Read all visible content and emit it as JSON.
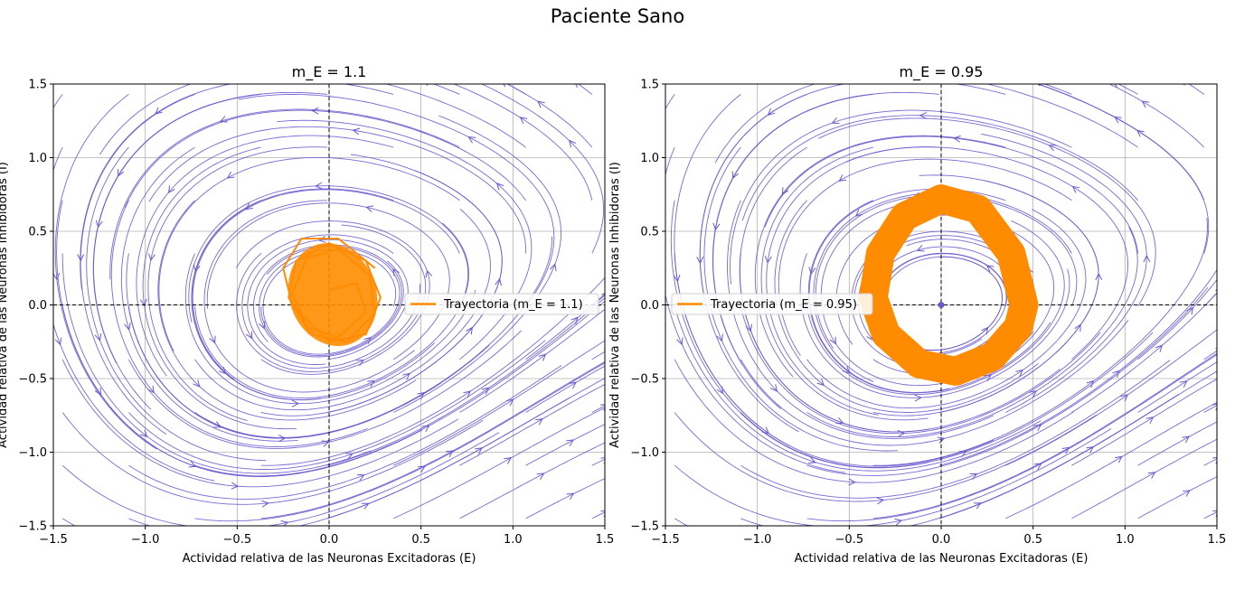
{
  "figure": {
    "suptitle": "Paciente Sano"
  },
  "colors": {
    "streamlines": "#6a5acd",
    "trajectory": "#ff8c00",
    "grid": "#b0b0b0",
    "nullclines": "#000000"
  },
  "chart_data": [
    {
      "type": "line",
      "title": "m_E = 1.1",
      "xlabel": "Actividad relativa de las Neuronas Excitadoras (E)",
      "ylabel": "Actividad relativa de las Neuronas Inhibidoras (I)",
      "xlim": [
        -1.5,
        1.5
      ],
      "ylim": [
        -1.5,
        1.5
      ],
      "xticks": [
        "−1.5",
        "−1.0",
        "−0.5",
        "0.0",
        "0.5",
        "1.0",
        "1.5"
      ],
      "yticks": [
        "−1.5",
        "−1.0",
        "−0.5",
        "0.0",
        "0.5",
        "1.0",
        "1.5"
      ],
      "grid": true,
      "reference_lines": {
        "x": 0,
        "y": 0,
        "style": "dashed"
      },
      "legend": {
        "position": "right",
        "label": "Trayectoria (m_E = 1.1)"
      },
      "series": [
        {
          "name": "Trayectoria (m_E = 1.1)",
          "x": [
            0.25,
            0.05,
            -0.15,
            -0.25,
            -0.2,
            0.0,
            0.2,
            0.28,
            0.2,
            0.0,
            -0.18,
            -0.22,
            -0.1,
            0.1,
            0.25,
            0.22,
            0.05,
            -0.12,
            -0.2,
            -0.12,
            0.05,
            0.2,
            0.15,
            0.0
          ],
          "y": [
            0.25,
            0.45,
            0.45,
            0.25,
            0.0,
            -0.25,
            -0.2,
            0.05,
            0.3,
            0.42,
            0.3,
            0.05,
            -0.2,
            -0.25,
            -0.05,
            0.2,
            0.38,
            0.32,
            0.08,
            -0.15,
            -0.22,
            -0.05,
            0.15,
            0.1
          ]
        }
      ]
    },
    {
      "type": "line",
      "title": "m_E = 0.95",
      "xlabel": "Actividad relativa de las Neuronas Excitadoras (E)",
      "ylabel": "Actividad relativa de las Neuronas Inhibidoras (I)",
      "xlim": [
        -1.5,
        1.5
      ],
      "ylim": [
        -1.5,
        1.5
      ],
      "xticks": [
        "−1.5",
        "−1.0",
        "−0.5",
        "0.0",
        "0.5",
        "1.0",
        "1.5"
      ],
      "yticks": [
        "−1.5",
        "−1.0",
        "−0.5",
        "0.0",
        "0.5",
        "1.0",
        "1.5"
      ],
      "grid": true,
      "reference_lines": {
        "x": 0,
        "y": 0,
        "style": "dashed"
      },
      "legend": {
        "position": "left",
        "label": "Trayectoria (m_E = 0.95)"
      },
      "fixed_point": {
        "x": 0.0,
        "y": 0.0
      },
      "series": [
        {
          "name": "Trayectoria (m_E = 0.95)",
          "x": [
            0.45,
            0.38,
            0.2,
            0.0,
            -0.2,
            -0.33,
            -0.37,
            -0.3,
            -0.12,
            0.08,
            0.28,
            0.42,
            0.45
          ],
          "y": [
            0.0,
            0.35,
            0.65,
            0.72,
            0.6,
            0.35,
            0.05,
            -0.2,
            -0.4,
            -0.45,
            -0.35,
            -0.15,
            0.0
          ]
        }
      ]
    }
  ]
}
